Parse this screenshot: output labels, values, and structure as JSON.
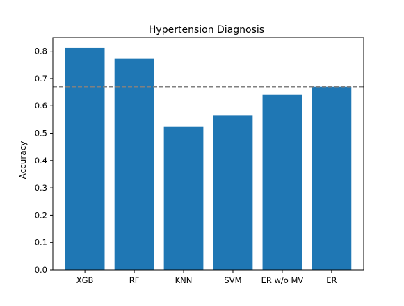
{
  "chart_data": {
    "type": "bar",
    "title": "Hypertension Diagnosis",
    "xlabel": "",
    "ylabel": "Accuracy",
    "categories": [
      "XGB",
      "RF",
      "KNN",
      "SVM",
      "ER w/o MV",
      "ER"
    ],
    "values": [
      0.812,
      0.772,
      0.525,
      0.564,
      0.642,
      0.67
    ],
    "ylim": [
      0,
      0.85
    ],
    "yticks": [
      0.0,
      0.1,
      0.2,
      0.3,
      0.4,
      0.5,
      0.6,
      0.7,
      0.8
    ],
    "ytick_labels": [
      "0.0",
      "0.1",
      "0.2",
      "0.3",
      "0.4",
      "0.5",
      "0.6",
      "0.7",
      "0.8"
    ],
    "reference_line": {
      "value": 0.67,
      "style": "dashed"
    },
    "grid": false,
    "legend": "none",
    "colors": {
      "bar": "#1f77b4",
      "reference_line": "#808080",
      "axes": "#000000"
    }
  }
}
